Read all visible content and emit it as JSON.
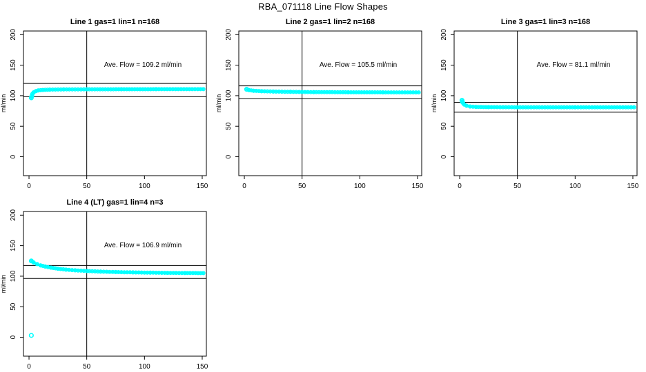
{
  "figure": {
    "title": "RBA_071118  Line Flow Shapes",
    "background_color": "#ffffff",
    "axis_color": "#000000",
    "series_color": "#00ffff"
  },
  "chart_data": [
    {
      "type": "scatter",
      "title": "Line 1 gas=1 lin=1 n=168",
      "annotation": "Ave. Flow =  109.2  ml/min",
      "ave_flow_ml_min": 109.2,
      "n_runs": 168,
      "ylabel": "ml/min",
      "xlim": [
        0,
        150
      ],
      "ylim": [
        0,
        200
      ],
      "xticks": [
        0,
        50,
        100,
        150
      ],
      "yticks": [
        0,
        50,
        100,
        150,
        200
      ],
      "vline_x": 50,
      "hlines": [
        120.1,
        98.3
      ],
      "band": [
        [
          2,
          96.5
        ],
        [
          3,
          103
        ],
        [
          4,
          105.5
        ],
        [
          6,
          107.5
        ],
        [
          8,
          108.6
        ],
        [
          12,
          109.4
        ],
        [
          18,
          110
        ],
        [
          30,
          110.3
        ],
        [
          50,
          110.5
        ],
        [
          80,
          110.6
        ],
        [
          110,
          110.7
        ],
        [
          151,
          110.8
        ]
      ],
      "start_markers": [
        [
          2,
          96.5
        ],
        [
          2.5,
          99.5
        ]
      ],
      "isolated_points": []
    },
    {
      "type": "scatter",
      "title": "Line 2 gas=1 lin=2 n=168",
      "annotation": "Ave. Flow =  105.5  ml/min",
      "ave_flow_ml_min": 105.5,
      "n_runs": 168,
      "ylabel": "ml/min",
      "xlim": [
        0,
        150
      ],
      "ylim": [
        0,
        200
      ],
      "xticks": [
        0,
        50,
        100,
        150
      ],
      "yticks": [
        0,
        50,
        100,
        150,
        200
      ],
      "vline_x": 50,
      "hlines": [
        116.1,
        95.0
      ],
      "band": [
        [
          2,
          110
        ],
        [
          4,
          109
        ],
        [
          8,
          108.2
        ],
        [
          15,
          107.4
        ],
        [
          25,
          106.8
        ],
        [
          40,
          106.3
        ],
        [
          60,
          105.9
        ],
        [
          90,
          105.6
        ],
        [
          120,
          105.5
        ],
        [
          151,
          105.4
        ]
      ],
      "start_markers": [
        [
          2,
          110.5
        ]
      ],
      "isolated_points": []
    },
    {
      "type": "scatter",
      "title": "Line 3 gas=1 lin=3 n=168",
      "annotation": "Ave. Flow =  81.1  ml/min",
      "ave_flow_ml_min": 81.1,
      "n_runs": 168,
      "ylabel": "ml/min",
      "xlim": [
        0,
        150
      ],
      "ylim": [
        0,
        200
      ],
      "xticks": [
        0,
        50,
        100,
        150
      ],
      "yticks": [
        0,
        50,
        100,
        150,
        200
      ],
      "vline_x": 50,
      "hlines": [
        89.2,
        73.0
      ],
      "band": [
        [
          2,
          92.5
        ],
        [
          3,
          88
        ],
        [
          4,
          85.5
        ],
        [
          6,
          83.5
        ],
        [
          9,
          82.3
        ],
        [
          14,
          81.7
        ],
        [
          25,
          81.3
        ],
        [
          50,
          81.1
        ],
        [
          100,
          81
        ],
        [
          151,
          81
        ]
      ],
      "start_markers": [
        [
          2,
          92.5
        ],
        [
          2.3,
          90
        ]
      ],
      "isolated_points": []
    },
    {
      "type": "scatter",
      "title": "Line 4 (LT) gas=1 lin=4 n=3",
      "annotation": "Ave. Flow =  106.9  ml/min",
      "ave_flow_ml_min": 106.9,
      "n_runs": 3,
      "ylabel": "ml/min",
      "xlim": [
        0,
        150
      ],
      "ylim": [
        0,
        200
      ],
      "xticks": [
        0,
        50,
        100,
        150
      ],
      "yticks": [
        0,
        50,
        100,
        150,
        200
      ],
      "vline_x": 50,
      "hlines": [
        117.6,
        96.2
      ],
      "band": [
        [
          2,
          125
        ],
        [
          4,
          122.5
        ],
        [
          7,
          119.8
        ],
        [
          10,
          117.8
        ],
        [
          14,
          115.8
        ],
        [
          19,
          114
        ],
        [
          25,
          112.3
        ],
        [
          32,
          110.8
        ],
        [
          40,
          109.6
        ],
        [
          50,
          108.5
        ],
        [
          62,
          107.5
        ],
        [
          75,
          106.8
        ],
        [
          90,
          106.2
        ],
        [
          105,
          105.8
        ],
        [
          120,
          105.5
        ],
        [
          135,
          105.3
        ],
        [
          151,
          105.1
        ]
      ],
      "start_markers": [
        [
          2,
          125
        ]
      ],
      "isolated_points": [
        [
          2,
          3
        ]
      ]
    }
  ]
}
